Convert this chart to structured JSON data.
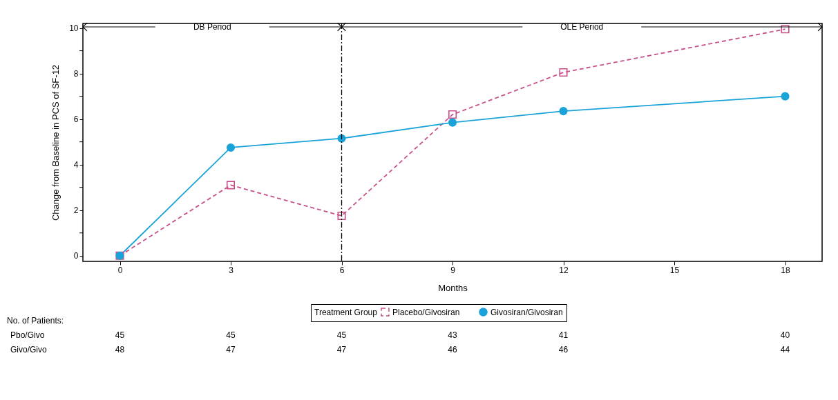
{
  "chart_data": {
    "type": "line",
    "xlabel": "Months",
    "ylabel": "Change from Baseline in PCS of SF-12",
    "legend_title": "Treatment Group",
    "legend": "bottom",
    "grid": false,
    "x": [
      0,
      3,
      6,
      9,
      12,
      18
    ],
    "xlim": [
      -1,
      19
    ],
    "xticks": [
      0,
      3,
      6,
      9,
      12,
      15,
      18
    ],
    "ylim": [
      -0.25,
      10.2
    ],
    "yticks": [
      0,
      {
        "value": 1,
        "label": null
      },
      2,
      {
        "value": 3,
        "label": null
      },
      4,
      {
        "value": 5,
        "label": null
      },
      6,
      {
        "value": 7,
        "label": null
      },
      8,
      {
        "value": 9,
        "label": null
      },
      10
    ],
    "series": [
      {
        "name": "Placebo/Givosiran",
        "color": "#c8508a",
        "marker": "square",
        "line_style": "dashed",
        "values": [
          0,
          3.1,
          1.75,
          6.2,
          8.05,
          9.95
        ]
      },
      {
        "name": "Givosiran/Givosiran",
        "color": "#1aa3d9",
        "marker": "circle",
        "line_style": "solid",
        "values": [
          0,
          4.75,
          5.15,
          5.85,
          6.35,
          7.0
        ]
      }
    ],
    "ref_lines": [
      {
        "axis": "x",
        "value": 6,
        "line_style": "dashdot",
        "color": "#000000"
      }
    ],
    "annotations": [
      "DB Period",
      "OLE Period",
      "No. of Patients:",
      "Pbo/Givo",
      "45",
      "45",
      "45",
      "43",
      "41",
      "40",
      "Givo/Givo",
      "48",
      "47",
      "47",
      "46",
      "46",
      "44"
    ]
  }
}
